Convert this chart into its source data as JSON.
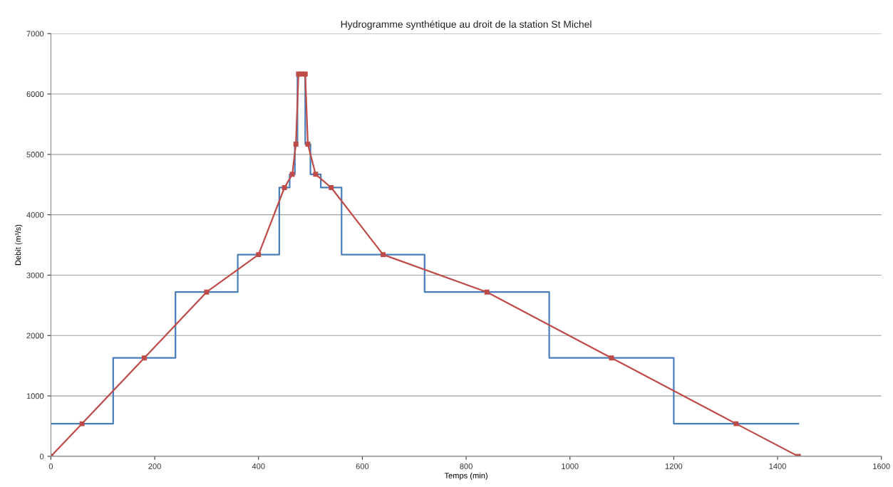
{
  "chart_data": {
    "type": "line",
    "title": "Hydrogramme synthétique au droit de la station St Michel",
    "xlabel": "Temps (min)",
    "ylabel": "Debit (m³/s)",
    "xlim": [
      0,
      1600
    ],
    "xticks": [
      0,
      200,
      400,
      600,
      800,
      1000,
      1200,
      1400,
      1600
    ],
    "ylim": [
      0,
      7000
    ],
    "yticks": [
      0,
      1000,
      2000,
      3000,
      4000,
      5000,
      6000,
      7000
    ],
    "grid": "y",
    "legend": false,
    "series": [
      {
        "type": "step",
        "color": "#4a7ebb",
        "marker": "none",
        "x": [
          0,
          120,
          240,
          360,
          440,
          460,
          470,
          475,
          490,
          500,
          520,
          560,
          720,
          960,
          1200,
          1440
        ],
        "values": [
          540,
          1630,
          2720,
          3340,
          4450,
          4670,
          5170,
          6330,
          5170,
          4670,
          4450,
          3340,
          2720,
          1630,
          540,
          540
        ]
      },
      {
        "color": "#be4b48",
        "marker": "square",
        "x": [
          0,
          60,
          180,
          300,
          400,
          450,
          465,
          472,
          477,
          483,
          490,
          495,
          510,
          540,
          640,
          840,
          1080,
          1320,
          1440
        ],
        "values": [
          0,
          540,
          1630,
          2720,
          3340,
          4450,
          4670,
          5170,
          6330,
          6330,
          6330,
          5170,
          4670,
          4450,
          3340,
          2720,
          1630,
          540,
          0
        ]
      }
    ]
  }
}
